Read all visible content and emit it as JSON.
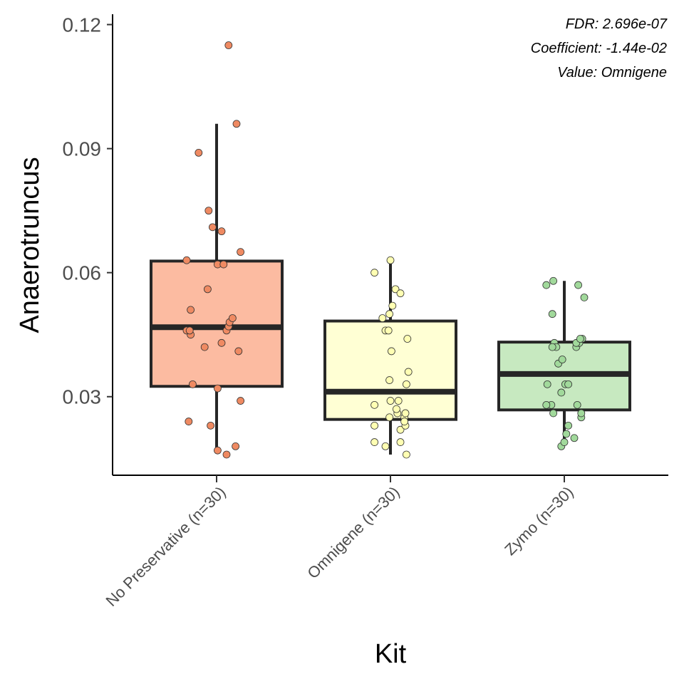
{
  "chart_data": {
    "type": "box",
    "xlabel": "Kit",
    "ylabel": "Anaerotruncus",
    "ylim": [
      0.011,
      0.1225
    ],
    "yticks": [
      0.03,
      0.06,
      0.09,
      0.12
    ],
    "ytick_labels": [
      "0.03",
      "0.06",
      "0.09",
      "0.12"
    ],
    "grid": false,
    "legend": "none",
    "annotations": [
      "FDR: 2.696e-07",
      "Coefficient: -1.44e-02",
      "Value: Omnigene"
    ],
    "categories": [
      "No Preservative (n=30)",
      "Omnigene (n=30)",
      "Zymo (n=30)"
    ],
    "boxes": [
      {
        "name": "No Preservative (n=30)",
        "fill": "#fcbba1",
        "point_color": "#ef8a62",
        "whisker_low": 0.017,
        "q1": 0.0325,
        "median": 0.0468,
        "q3": 0.0628,
        "whisker_high": 0.096,
        "points": [
          [
            -0.28,
            0.024
          ],
          [
            -0.06,
            0.023
          ],
          [
            0.01,
            0.017
          ],
          [
            0.1,
            0.016
          ],
          [
            0.19,
            0.018
          ],
          [
            0.01,
            0.032
          ],
          [
            -0.24,
            0.033
          ],
          [
            0.24,
            0.029
          ],
          [
            -0.12,
            0.042
          ],
          [
            0.05,
            0.043
          ],
          [
            -0.26,
            0.045
          ],
          [
            -0.3,
            0.046
          ],
          [
            0.1,
            0.046
          ],
          [
            0.12,
            0.047
          ],
          [
            0.13,
            0.048
          ],
          [
            0.16,
            0.049
          ],
          [
            -0.26,
            0.051
          ],
          [
            -0.09,
            0.056
          ],
          [
            -0.3,
            0.063
          ],
          [
            0.01,
            0.062
          ],
          [
            0.07,
            0.062
          ],
          [
            0.24,
            0.065
          ],
          [
            0.05,
            0.07
          ],
          [
            -0.04,
            0.071
          ],
          [
            -0.08,
            0.075
          ],
          [
            -0.18,
            0.089
          ],
          [
            0.2,
            0.096
          ],
          [
            0.12,
            0.115
          ],
          [
            0.22,
            0.041
          ],
          [
            -0.27,
            0.046
          ]
        ]
      },
      {
        "name": "Omnigene (n=30)",
        "fill": "#ffffd4",
        "point_color": "#ffffb3",
        "whisker_low": 0.016,
        "q1": 0.0245,
        "median": 0.0312,
        "q3": 0.0483,
        "whisker_high": 0.063,
        "points": [
          [
            -0.16,
            0.019
          ],
          [
            0.1,
            0.019
          ],
          [
            -0.05,
            0.018
          ],
          [
            0.16,
            0.016
          ],
          [
            -0.16,
            0.023
          ],
          [
            0.1,
            0.022
          ],
          [
            0.15,
            0.023
          ],
          [
            0.14,
            0.025
          ],
          [
            0.15,
            0.026
          ],
          [
            0.07,
            0.026
          ],
          [
            0.06,
            0.027
          ],
          [
            -0.01,
            0.025
          ],
          [
            0.0,
            0.029
          ],
          [
            -0.16,
            0.028
          ],
          [
            0.14,
            0.024
          ],
          [
            0.08,
            0.029
          ],
          [
            -0.01,
            0.034
          ],
          [
            0.16,
            0.033
          ],
          [
            0.18,
            0.036
          ],
          [
            0.01,
            0.041
          ],
          [
            -0.05,
            0.046
          ],
          [
            -0.02,
            0.046
          ],
          [
            0.17,
            0.044
          ],
          [
            -0.01,
            0.05
          ],
          [
            0.02,
            0.052
          ],
          [
            -0.08,
            0.049
          ],
          [
            0.05,
            0.056
          ],
          [
            0.1,
            0.055
          ],
          [
            -0.16,
            0.06
          ],
          [
            0.0,
            0.063
          ]
        ]
      },
      {
        "name": "Zymo (n=30)",
        "fill": "#c7e9c0",
        "point_color": "#a1d99b",
        "whisker_low": 0.019,
        "q1": 0.0268,
        "median": 0.0355,
        "q3": 0.0432,
        "whisker_high": 0.058,
        "points": [
          [
            -0.03,
            0.018
          ],
          [
            0.0,
            0.019
          ],
          [
            0.02,
            0.021
          ],
          [
            0.04,
            0.023
          ],
          [
            0.1,
            0.02
          ],
          [
            -0.13,
            0.028
          ],
          [
            -0.11,
            0.026
          ],
          [
            -0.18,
            0.028
          ],
          [
            0.17,
            0.025
          ],
          [
            0.17,
            0.026
          ],
          [
            -0.17,
            0.033
          ],
          [
            0.01,
            0.033
          ],
          [
            0.04,
            0.033
          ],
          [
            -0.03,
            0.031
          ],
          [
            0.13,
            0.028
          ],
          [
            -0.06,
            0.038
          ],
          [
            -0.02,
            0.039
          ],
          [
            -0.1,
            0.043
          ],
          [
            -0.08,
            0.042
          ],
          [
            -0.12,
            0.042
          ],
          [
            0.12,
            0.042
          ],
          [
            0.15,
            0.043
          ],
          [
            0.12,
            0.043
          ],
          [
            0.18,
            0.044
          ],
          [
            -0.12,
            0.05
          ],
          [
            -0.18,
            0.057
          ],
          [
            -0.11,
            0.058
          ],
          [
            0.14,
            0.057
          ],
          [
            0.2,
            0.054
          ],
          [
            0.16,
            0.044
          ]
        ]
      }
    ]
  }
}
